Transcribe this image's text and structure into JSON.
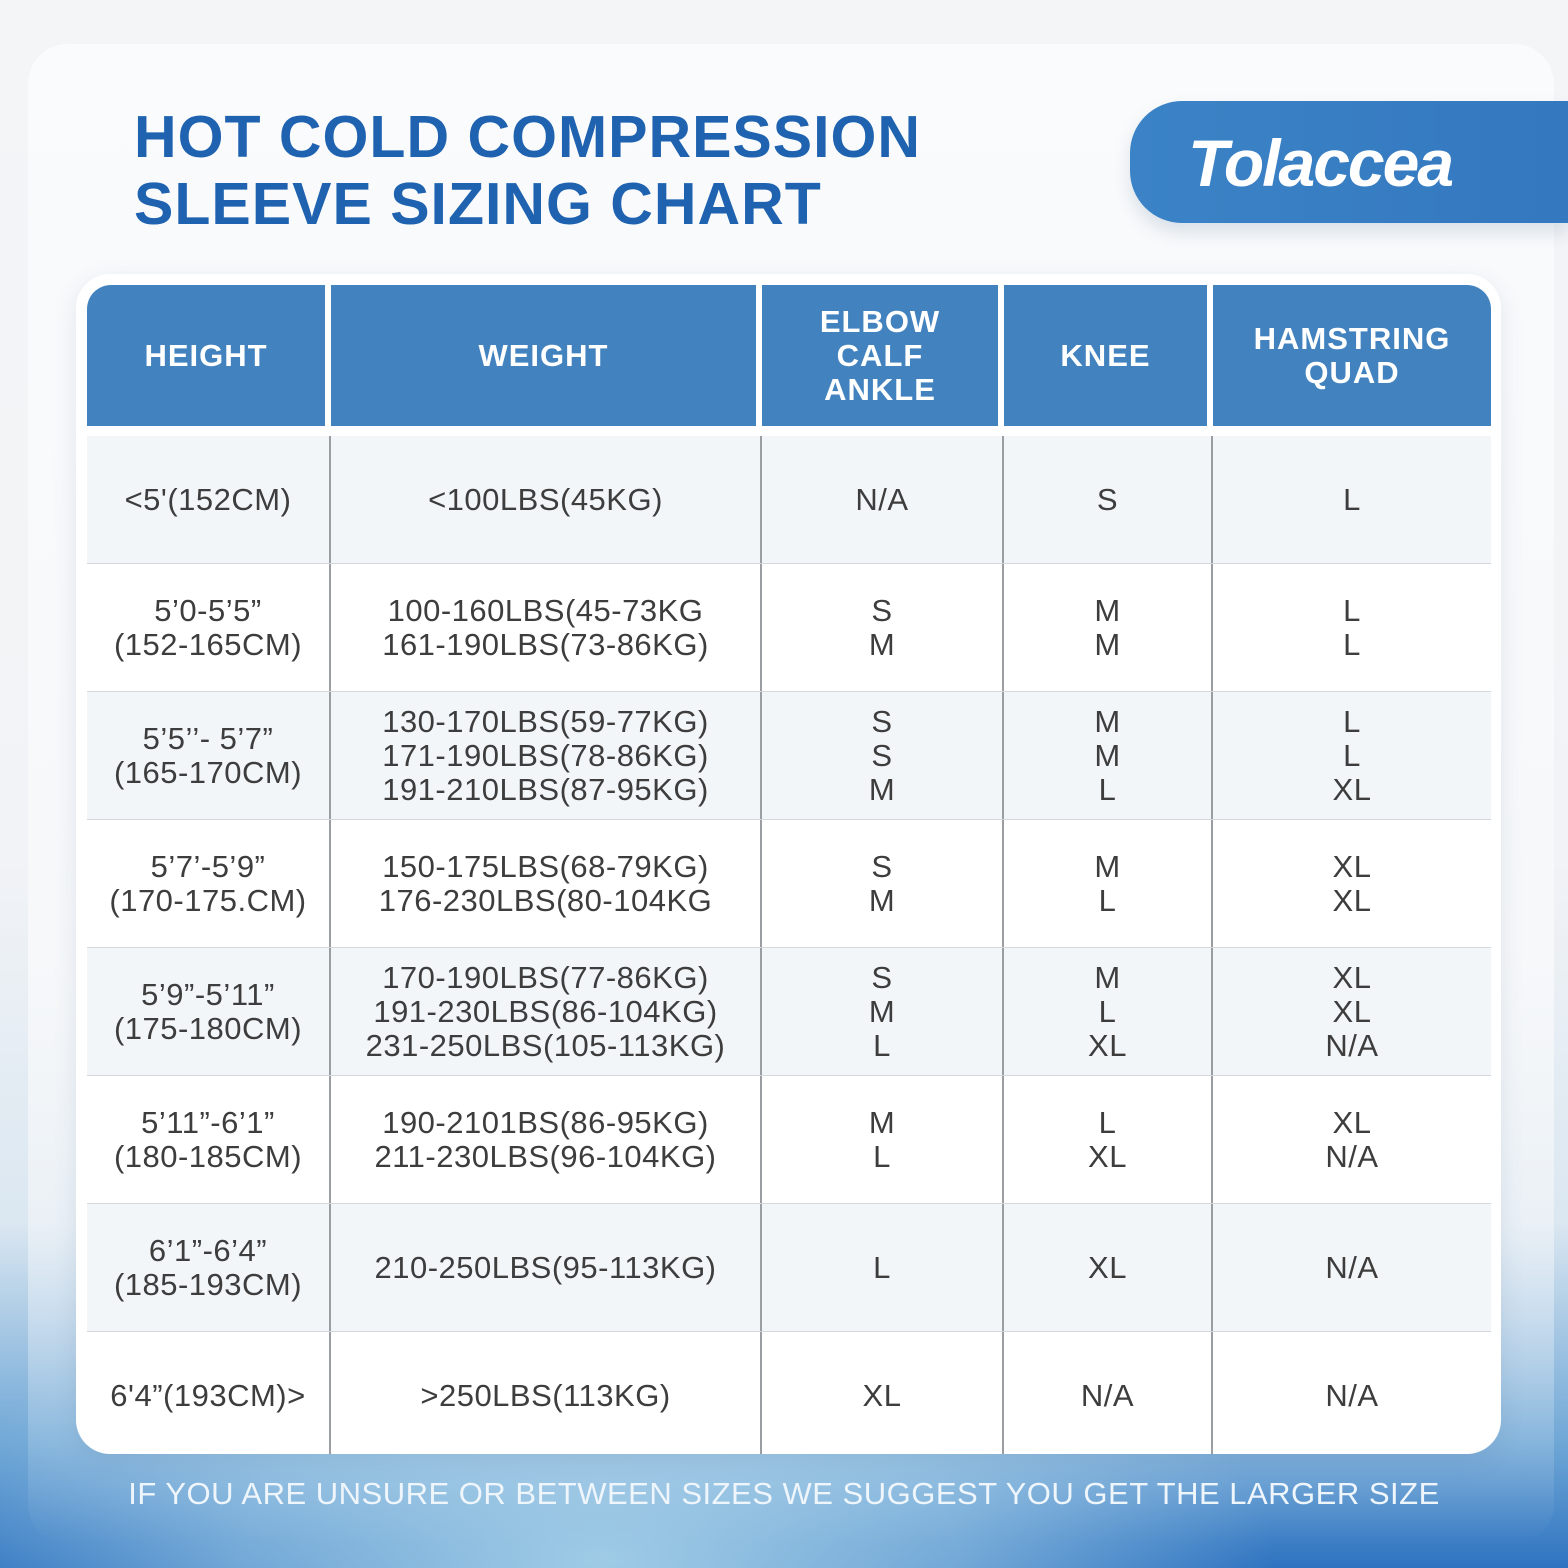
{
  "title": {
    "line1": "HOT COLD COMPRESSION",
    "line2": "SLEEVE SIZING CHART"
  },
  "brand": {
    "logo_text": "Tolaccea",
    "accent_color": "#3b83c6",
    "title_color": "#1e62b0"
  },
  "table": {
    "headers": [
      "HEIGHT",
      "WEIGHT",
      "ELBOW\nCALF\nANKLE",
      "KNEE",
      "HAMSTRING\nQUAD"
    ],
    "rows": [
      [
        "<5'(152CM)",
        "<100LBS(45KG)",
        "N/A",
        "S",
        "L"
      ],
      [
        "5’0-5’5”\n(152-165CM)",
        "100-160LBS(45-73KG\n161-190LBS(73-86KG)",
        "S\nM",
        "M\nM",
        "L\nL"
      ],
      [
        "5’5’’- 5’7”\n(165-170CM)",
        "130-170LBS(59-77KG)\n171-190LBS(78-86KG)\n191-210LBS(87-95KG)",
        "S\nS\nM",
        "M\nM\nL",
        "L\nL\nXL"
      ],
      [
        "5’7’-5’9”\n(170-175.CM)",
        "150-175LBS(68-79KG)\n176-230LBS(80-104KG",
        "S\nM",
        "M\nL",
        "XL\nXL"
      ],
      [
        "5’9”-5’11”\n(175-180CM)",
        "170-190LBS(77-86KG)\n191-230LBS(86-104KG)\n231-250LBS(105-113KG)",
        "S\nM\nL",
        "M\nL\nXL",
        "XL\nXL\nN/A"
      ],
      [
        "5’11”-6’1”\n(180-185CM)",
        "190-2101BS(86-95KG)\n211-230LBS(96-104KG)",
        "M\nL",
        "L\nXL",
        "XL\nN/A"
      ],
      [
        "6’1”-6’4”\n(185-193CM)",
        "210-250LBS(95-113KG)",
        "L",
        "XL",
        "N/A"
      ],
      [
        "6'4”(193CM)>",
        ">250LBS(113KG)",
        "XL",
        "N/A",
        "N/A"
      ]
    ]
  },
  "footer_note": "IF YOU ARE UNSURE OR BETWEEN SIZES WE SUGGEST YOU GET THE LARGER SIZE"
}
